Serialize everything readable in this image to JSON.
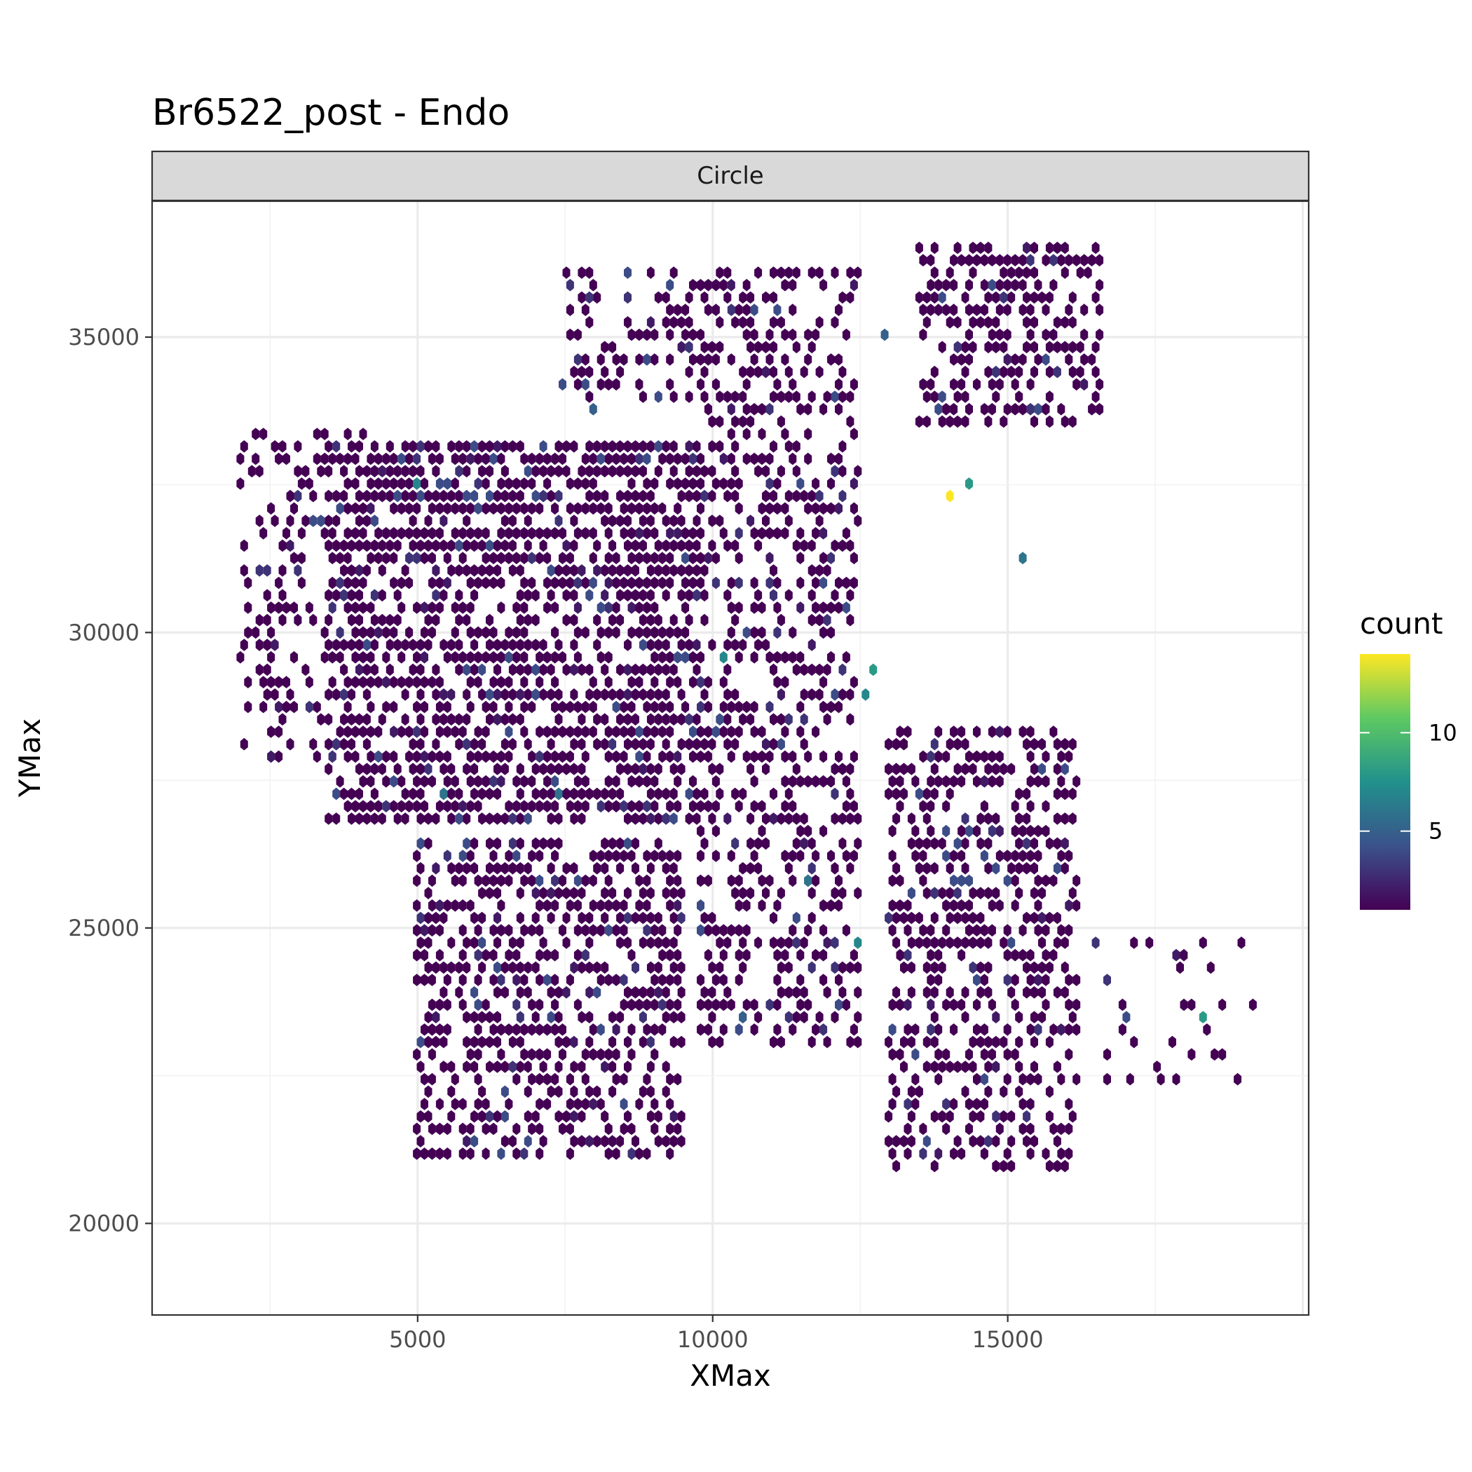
{
  "chart_data": {
    "type": "hexbin",
    "title": "Br6522_post - Endo",
    "facet_label": "Circle",
    "xlabel": "XMax",
    "ylabel": "YMax",
    "xlim": [
      500,
      20100
    ],
    "ylim": [
      18450,
      37300
    ],
    "x_ticks": [
      5000,
      10000,
      15000
    ],
    "y_ticks": [
      20000,
      25000,
      30000,
      35000
    ],
    "legend": {
      "title": "count",
      "range": [
        1,
        14
      ],
      "ticks": [
        5,
        10
      ],
      "colors": [
        "#440154",
        "#3b528b",
        "#21918c",
        "#5ec962",
        "#fde725"
      ]
    },
    "grid": true,
    "legend_position": "right",
    "hex_bin_size": [
      130,
      210
    ],
    "cluster_regions": [
      {
        "x": [
          3500,
          9800
        ],
        "y": [
          26800,
          33200
        ],
        "density": 0.7
      },
      {
        "x": [
          5000,
          9500
        ],
        "y": [
          21200,
          26600
        ],
        "density": 0.6
      },
      {
        "x": [
          9800,
          12500
        ],
        "y": [
          23000,
          34000
        ],
        "density": 0.45
      },
      {
        "x": [
          13000,
          16200
        ],
        "y": [
          21000,
          28500
        ],
        "density": 0.5
      },
      {
        "x": [
          13500,
          16500
        ],
        "y": [
          33500,
          36500
        ],
        "density": 0.55
      },
      {
        "x": [
          7500,
          12500
        ],
        "y": [
          34000,
          36200
        ],
        "density": 0.4
      },
      {
        "x": [
          2000,
          4200
        ],
        "y": [
          28000,
          33500
        ],
        "density": 0.35
      },
      {
        "x": [
          16500,
          19200
        ],
        "y": [
          22500,
          25000
        ],
        "density": 0.12
      }
    ],
    "highlight_bins": [
      {
        "x": 14050,
        "y": 32300,
        "count": 14
      },
      {
        "x": 14300,
        "y": 32450,
        "count": 8
      },
      {
        "x": 12750,
        "y": 29350,
        "count": 8
      },
      {
        "x": 12600,
        "y": 28850,
        "count": 7
      },
      {
        "x": 4950,
        "y": 32450,
        "count": 7
      },
      {
        "x": 10150,
        "y": 29550,
        "count": 7
      },
      {
        "x": 18250,
        "y": 23550,
        "count": 8
      },
      {
        "x": 12450,
        "y": 24850,
        "count": 7
      },
      {
        "x": 7450,
        "y": 27200,
        "count": 6
      },
      {
        "x": 5450,
        "y": 27300,
        "count": 6
      },
      {
        "x": 11550,
        "y": 25700,
        "count": 6
      },
      {
        "x": 15300,
        "y": 31350,
        "count": 6
      },
      {
        "x": 12850,
        "y": 35100,
        "count": 5
      },
      {
        "x": 8000,
        "y": 33700,
        "count": 5
      },
      {
        "x": 10450,
        "y": 23500,
        "count": 5
      }
    ]
  }
}
